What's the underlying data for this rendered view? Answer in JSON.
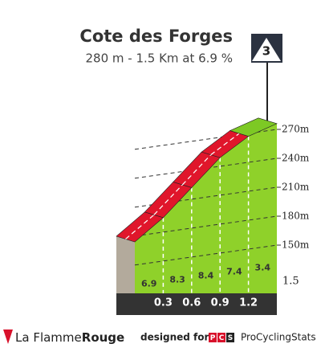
{
  "chart_data": {
    "type": "profile",
    "title": "Cote des Forges",
    "subtitle": "280 m - 1.5 Km at 6.9 %",
    "category_badge": "3",
    "x": [
      0,
      0.3,
      0.6,
      0.9,
      1.2,
      1.5
    ],
    "values": [
      174,
      195,
      222,
      249,
      267,
      276
    ],
    "gradients": [
      6.9,
      8.3,
      8.4,
      7.4,
      3.4
    ],
    "segment_colors": [
      "#e0162b",
      "#e0162b",
      "#e0162b",
      "#e0162b",
      "#7dc924"
    ],
    "face_color": "#8fd12a",
    "xlim": [
      0,
      1.5
    ],
    "xticks": [
      0.3,
      0.6,
      0.9,
      1.2,
      1.5
    ],
    "ylim": [
      100,
      280
    ],
    "yticks": [
      {
        "value": 150,
        "label": "150m"
      },
      {
        "value": 180,
        "label": "180m"
      },
      {
        "value": 210,
        "label": "210m"
      },
      {
        "value": 240,
        "label": "240m"
      },
      {
        "value": 270,
        "label": "270m"
      }
    ],
    "grid": true
  },
  "footer": {
    "brand_light": "La Flamme",
    "brand_bold": "Rouge",
    "designed_for": "designed for",
    "logo_letters": [
      "P",
      "C",
      "S"
    ],
    "site": "ProCyclingStats"
  }
}
